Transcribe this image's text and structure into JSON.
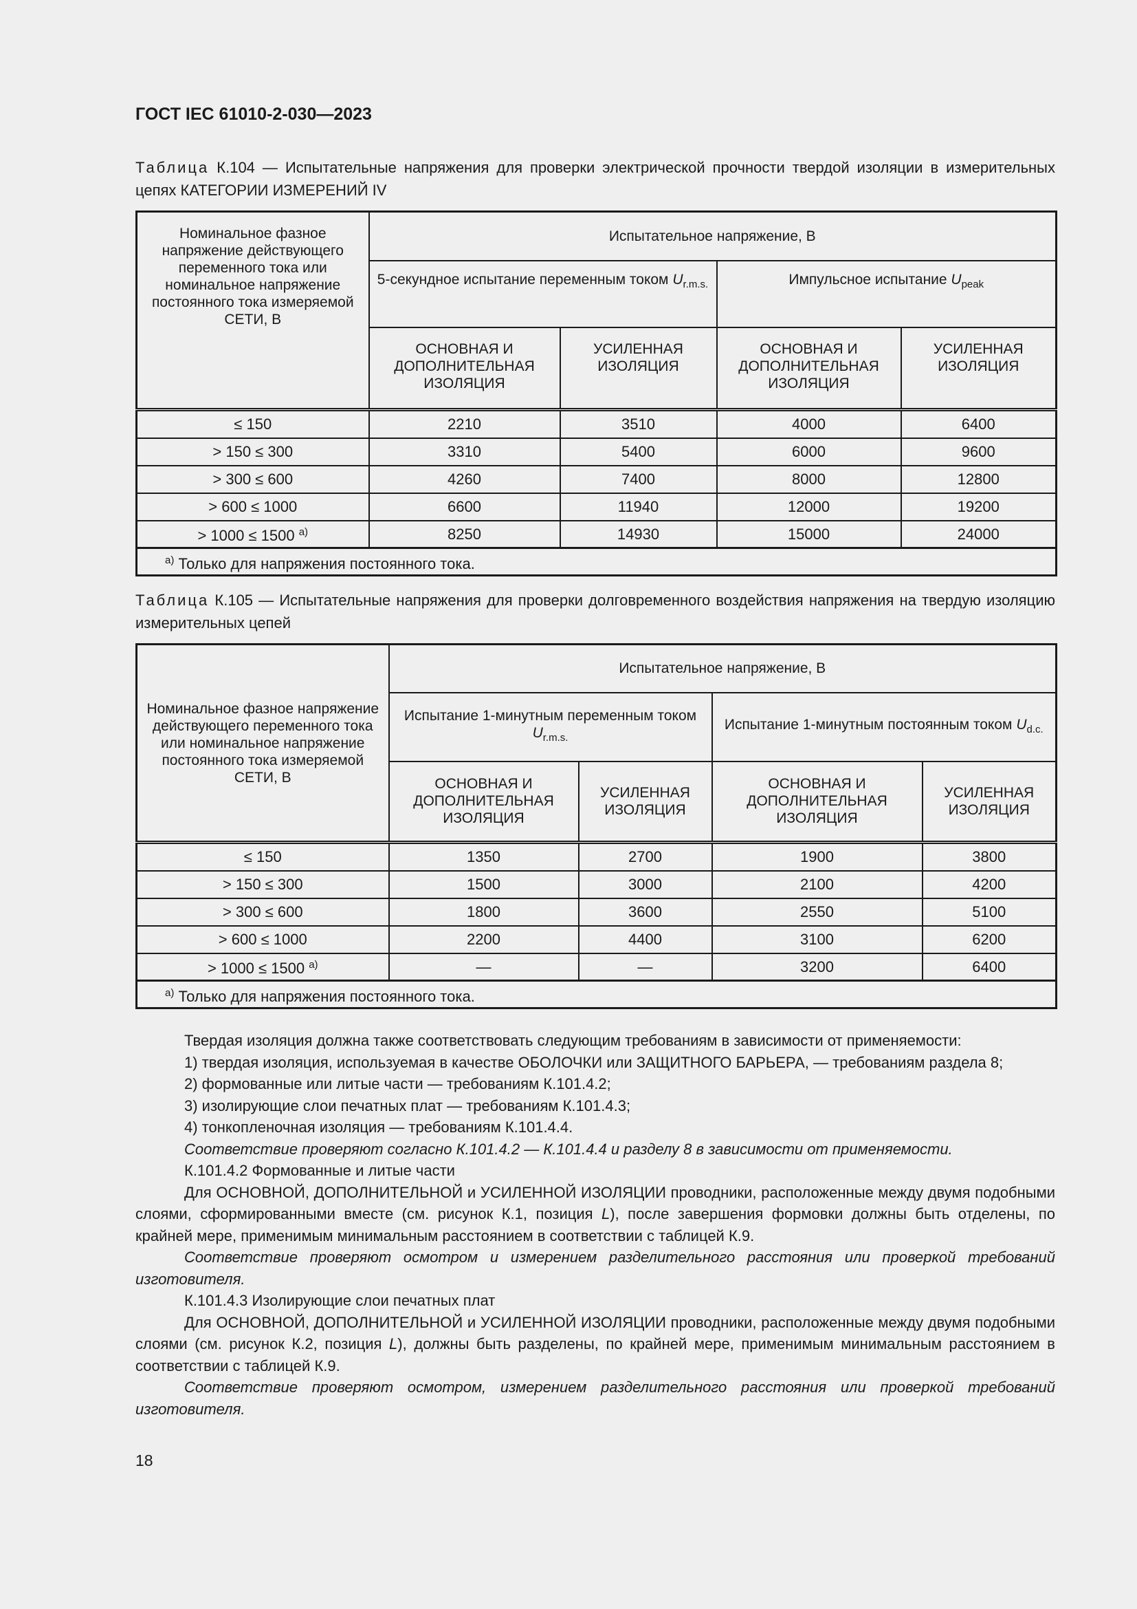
{
  "header": {
    "title": "ГОСТ IEC 61010-2-030—2023"
  },
  "table104": {
    "caption_label": "Таблица",
    "caption_text": " К.104 — Испытательные напряжения для проверки электрической прочности твердой изоляции в измерительных цепях КАТЕГОРИИ ИЗМЕРЕНИЙ IV",
    "row_header": "Номинальное фазное напряжение действующего переменного тока или номинальное напряжение постоянного тока измеряемой СЕТИ, В",
    "group_header": "Испытательное напряжение, В",
    "sub1": "5-секундное испытание переменным током ",
    "sub1_sym": "U",
    "sub1_sub": "r.m.s.",
    "sub2": "Импульсное испытание ",
    "sub2_sym": "U",
    "sub2_sub": "peak",
    "col_basic": "ОСНОВНАЯ И ДОПОЛНИТЕЛЬНАЯ ИЗОЛЯЦИЯ",
    "col_reinforced": "УСИЛЕННАЯ ИЗОЛЯЦИЯ",
    "rows": [
      {
        "range": "≤ 150",
        "v": [
          "2210",
          "3510",
          "4000",
          "6400"
        ]
      },
      {
        "range": "> 150 ≤ 300",
        "v": [
          "3310",
          "5400",
          "6000",
          "9600"
        ]
      },
      {
        "range": "> 300 ≤ 600",
        "v": [
          "4260",
          "7400",
          "8000",
          "12800"
        ]
      },
      {
        "range": "> 600 ≤ 1000",
        "v": [
          "6600",
          "11940",
          "12000",
          "19200"
        ]
      },
      {
        "range": "> 1000 ≤ 1500 ",
        "mark": "a)",
        "v": [
          "8250",
          "14930",
          "15000",
          "24000"
        ]
      }
    ],
    "footnote_mark": "a)",
    "footnote": " Только для напряжения постоянного тока."
  },
  "table105": {
    "caption_label": "Таблица",
    "caption_text": " К.105 — Испытательные напряжения для проверки долговременного воздействия напряжения на твердую изоляцию измерительных цепей",
    "row_header": "Номинальное фазное напряжение действующего переменного тока или номинальное напряжение постоянного тока измеряемой СЕТИ, В",
    "group_header": "Испытательное напряжение, В",
    "sub1": "Испытание 1-минутным переменным током ",
    "sub1_sym": "U",
    "sub1_sub": "r.m.s.",
    "sub2": "Испытание 1-минутным постоянным током ",
    "sub2_sym": "U",
    "sub2_sub": "d.c.",
    "col_basic": "ОСНОВНАЯ И ДОПОЛНИТЕЛЬНАЯ ИЗОЛЯЦИЯ",
    "col_reinforced": "УСИЛЕННАЯ ИЗОЛЯЦИЯ",
    "rows": [
      {
        "range": "≤ 150",
        "v": [
          "1350",
          "2700",
          "1900",
          "3800"
        ]
      },
      {
        "range": "> 150 ≤ 300",
        "v": [
          "1500",
          "3000",
          "2100",
          "4200"
        ]
      },
      {
        "range": "> 300 ≤ 600",
        "v": [
          "1800",
          "3600",
          "2550",
          "5100"
        ]
      },
      {
        "range": "> 600 ≤ 1000",
        "v": [
          "2200",
          "4400",
          "3100",
          "6200"
        ]
      },
      {
        "range": "> 1000 ≤ 1500 ",
        "mark": "a)",
        "v": [
          "—",
          "—",
          "3200",
          "6400"
        ]
      }
    ],
    "footnote_mark": "a)",
    "footnote": " Только для напряжения постоянного тока."
  },
  "body": {
    "p1": "Твердая изоляция должна также соответствовать следующим требованиям в зависимости от применяемости:",
    "p2": "1) твердая изоляция, используемая в качестве ОБОЛОЧКИ или ЗАЩИТНОГО БАРЬЕРА, — требованиям раздела 8;",
    "p3": "2) формованные или литые части — требованиям К.101.4.2;",
    "p4": "3) изолирующие слои печатных плат — требованиям К.101.4.3;",
    "p5": "4) тонкопленочная изоляция — требованиям К.101.4.4.",
    "p6": "Соответствие проверяют согласно К.101.4.2 — К.101.4.4 и разделу 8 в зависимости от применяемости.",
    "p7": "К.101.4.2 Формованные и литые части",
    "p8a": "Для ОСНОВНОЙ, ДОПОЛНИТЕЛЬНОЙ и УСИЛЕННОЙ ИЗОЛЯЦИИ проводники, расположенные между двумя подобными слоями, сформированными вместе (см. рисунок К.1, позиция ",
    "p8_l": "L",
    "p8b": "), после завершения формовки должны быть отделены, по крайней мере, применимым минимальным расстоянием в соответствии с таблицей К.9.",
    "p9": "Соответствие проверяют осмотром и измерением разделительного расстояния или проверкой требований изготовителя.",
    "p10": "К.101.4.3  Изолирующие слои печатных плат",
    "p11a": "Для ОСНОВНОЙ, ДОПОЛНИТЕЛЬНОЙ и УСИЛЕННОЙ ИЗОЛЯЦИИ проводники, расположенные между двумя подобными слоями (см. рисунок К.2, позиция ",
    "p11_l": "L",
    "p11b": "), должны быть разделены, по крайней мере, применимым минимальным расстоянием в соответствии с таблицей К.9.",
    "p12": "Соответствие проверяют осмотром, измерением разделительного расстояния или проверкой требований изготовителя."
  },
  "footer": {
    "page_number": "18"
  }
}
